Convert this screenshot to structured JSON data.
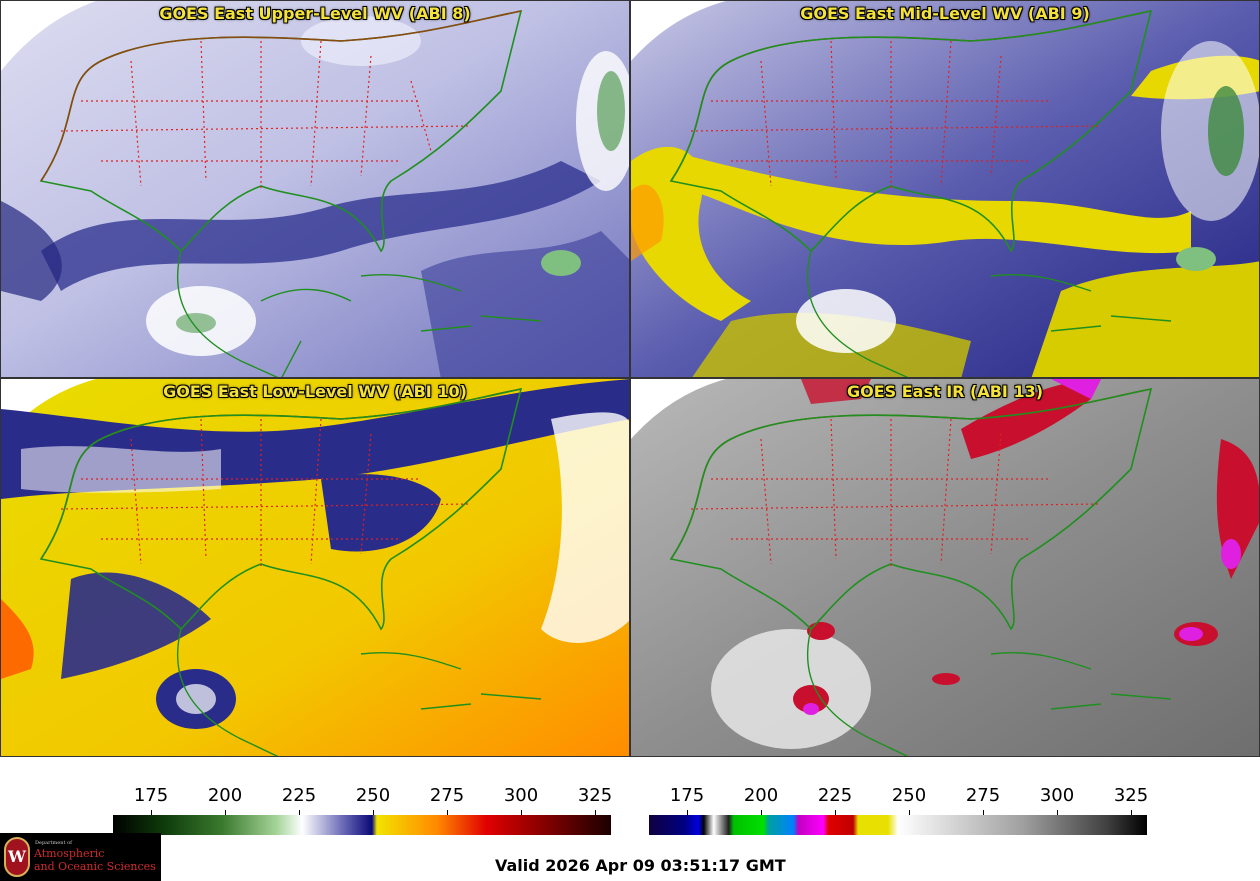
{
  "panels": [
    {
      "title": "GOES East Upper-Level WV (ABI 8)"
    },
    {
      "title": "GOES East Mid-Level WV (ABI 9)"
    },
    {
      "title": "GOES East Low-Level WV (ABI 10)"
    },
    {
      "title": "GOES East IR (ABI 13)"
    }
  ],
  "colorbars": {
    "wv": {
      "ticks": [
        "175",
        "200",
        "225",
        "250",
        "275",
        "300",
        "325"
      ],
      "stops": [
        "#000000",
        "#0d3a0a",
        "#3b7a2e",
        "#a6d69a",
        "#ffffff",
        "#6d6db8",
        "#0a0a78",
        "#f1e400",
        "#ff8a00",
        "#e00000",
        "#7a0000",
        "#1a0000"
      ]
    },
    "ir": {
      "ticks": [
        "175",
        "200",
        "225",
        "250",
        "275",
        "300",
        "325"
      ]
    }
  },
  "footer": {
    "valid_text": "Valid 2026 Apr 09 03:51:17 GMT",
    "logo_small": "Department of",
    "logo_line1": "Atmospheric",
    "logo_line2": "and Oceanic Sciences",
    "logo_seal": "W"
  },
  "colors": {
    "title": "#f4e23a",
    "state_borders": "#e02020",
    "country_borders": "#8a4a10",
    "coastlines": "#1f8f1f"
  }
}
